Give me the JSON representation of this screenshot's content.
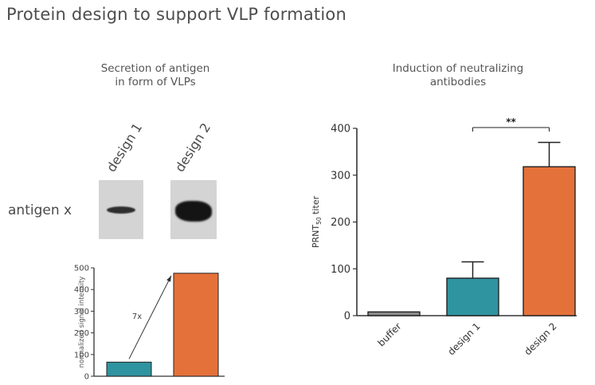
{
  "page": {
    "title": "Protein design to support VLP formation"
  },
  "left_panel": {
    "subtitle_lines": [
      "Secretion of antigen",
      "in form of VLPs"
    ],
    "lanes": [
      "design 1",
      "design 2"
    ],
    "blot_row_label": "antigen x"
  },
  "right_panel": {
    "subtitle_lines": [
      "Induction of neutralizing",
      "antibodies"
    ]
  },
  "colors": {
    "teal": "#2f93a0",
    "orange": "#e5713a",
    "grey": "#8a8a8a",
    "axis": "#333333"
  },
  "chart_data": [
    {
      "type": "bar",
      "title": "",
      "categories": [
        "design 1",
        "design 2"
      ],
      "values": [
        65,
        475
      ],
      "ylabel": "normalized signal intensity",
      "xlabel": "",
      "ylim": [
        0,
        500
      ],
      "yticks": [
        0,
        100,
        200,
        300,
        400,
        500
      ],
      "annotation": "7x",
      "colors": [
        "#2f93a0",
        "#e5713a"
      ]
    },
    {
      "type": "bar",
      "title": "",
      "categories": [
        "buffer",
        "design 1",
        "design 2"
      ],
      "values": [
        8,
        80,
        318
      ],
      "error_upper": [
        8,
        115,
        370
      ],
      "ylabel": "PRNT",
      "ylabel_sub": "50",
      "ylabel_suffix": " titer",
      "xlabel": "",
      "ylim": [
        0,
        400
      ],
      "yticks": [
        0,
        100,
        200,
        300,
        400
      ],
      "significance": "**",
      "colors": [
        "#8a8a8a",
        "#2f93a0",
        "#e5713a"
      ]
    }
  ]
}
